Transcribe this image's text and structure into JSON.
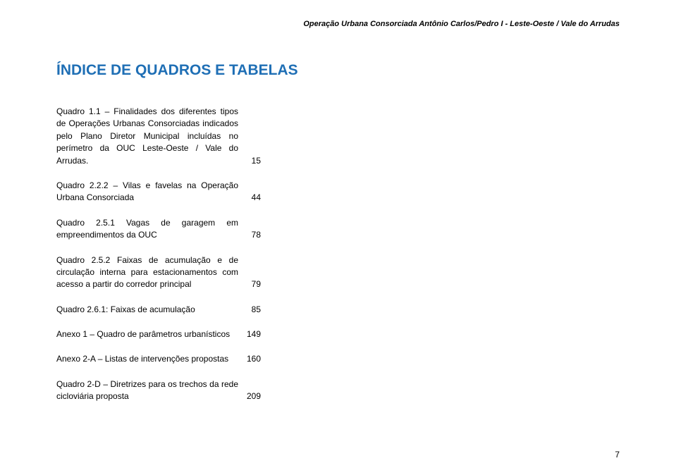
{
  "header": "Operação Urbana Consorciada Antônio Carlos/Pedro I - Leste-Oeste / Vale do Arrudas",
  "section_title": "ÍNDICE DE QUADROS E TABELAS",
  "entries": [
    {
      "desc": "Quadro 1.1 – Finalidades dos diferentes tipos de Operações Urbanas Consorciadas indicados pelo Plano Diretor Municipal incluídas no perímetro da OUC Leste-Oeste / Vale do Arrudas.",
      "page": "15"
    },
    {
      "desc": "Quadro 2.2.2 – Vilas e favelas na Operação Urbana Consorciada",
      "page": "44"
    },
    {
      "desc": "Quadro 2.5.1 Vagas de garagem em empreendimentos da OUC",
      "page": "78"
    },
    {
      "desc": "Quadro 2.5.2 Faixas de acumulação e de circulação interna para estacionamentos com acesso a partir do corredor principal",
      "page": "79"
    },
    {
      "desc": "Quadro 2.6.1: Faixas de acumulação",
      "page": "85"
    },
    {
      "desc": "Anexo 1 – Quadro de parâmetros urbanísticos",
      "page": "149"
    },
    {
      "desc": "Anexo 2-A – Listas de intervenções propostas",
      "page": "160"
    },
    {
      "desc": "Quadro 2-D – Diretrizes para os trechos da rede cicloviária proposta",
      "page": "209"
    }
  ],
  "page_number": "7"
}
